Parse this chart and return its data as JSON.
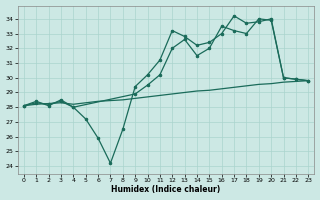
{
  "xlabel": "Humidex (Indice chaleur)",
  "background_color": "#cce8e4",
  "grid_color": "#aad4ce",
  "line_color": "#1a6b5a",
  "xlim": [
    -0.5,
    23.5
  ],
  "ylim": [
    23.5,
    34.9
  ],
  "yticks": [
    24,
    25,
    26,
    27,
    28,
    29,
    30,
    31,
    32,
    33,
    34
  ],
  "xticks": [
    0,
    1,
    2,
    3,
    4,
    5,
    6,
    7,
    8,
    9,
    10,
    11,
    12,
    13,
    14,
    15,
    16,
    17,
    18,
    19,
    20,
    21,
    22,
    23
  ],
  "series1_x": [
    0,
    1,
    2,
    3,
    4,
    5,
    6,
    7,
    8,
    9,
    10,
    11,
    12,
    13,
    14,
    15,
    16,
    17,
    18,
    19,
    20,
    21,
    22,
    23
  ],
  "series1_y": [
    28.1,
    28.4,
    28.1,
    28.5,
    28.0,
    27.2,
    25.9,
    24.2,
    26.5,
    29.4,
    30.2,
    31.2,
    33.2,
    32.8,
    32.2,
    32.4,
    33.0,
    34.2,
    33.7,
    33.8,
    34.0,
    30.0,
    29.9,
    29.8
  ],
  "series2_x": [
    0,
    1,
    2,
    3,
    4,
    9,
    10,
    11,
    12,
    13,
    14,
    15,
    16,
    17,
    18,
    19,
    20,
    21,
    22,
    23
  ],
  "series2_y": [
    28.1,
    28.3,
    28.2,
    28.4,
    28.0,
    28.9,
    29.5,
    30.2,
    32.0,
    32.6,
    31.5,
    32.0,
    33.5,
    33.2,
    33.0,
    34.0,
    33.9,
    30.0,
    29.9,
    29.8
  ],
  "series3_x": [
    0,
    1,
    2,
    3,
    4,
    5,
    6,
    7,
    8,
    9,
    10,
    11,
    12,
    13,
    14,
    15,
    16,
    17,
    18,
    19,
    20,
    21,
    22,
    23
  ],
  "series3_y": [
    28.1,
    28.2,
    28.25,
    28.3,
    28.2,
    28.3,
    28.4,
    28.45,
    28.5,
    28.6,
    28.7,
    28.8,
    28.9,
    29.0,
    29.1,
    29.15,
    29.25,
    29.35,
    29.45,
    29.55,
    29.6,
    29.7,
    29.75,
    29.8
  ]
}
